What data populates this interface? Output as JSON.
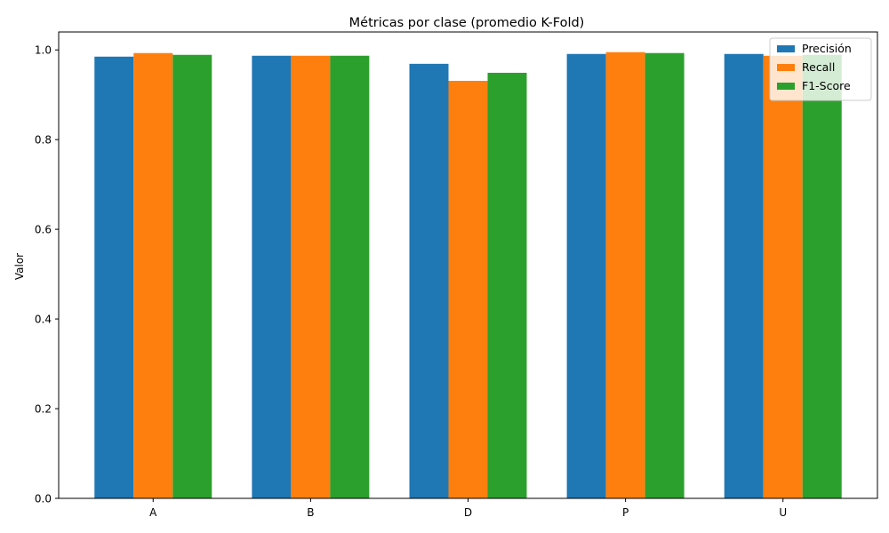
{
  "chart_data": {
    "type": "bar",
    "title": "Métricas por clase (promedio K-Fold)",
    "xlabel": "",
    "ylabel": "Valor",
    "categories": [
      "A",
      "B",
      "D",
      "P",
      "U"
    ],
    "series": [
      {
        "name": "Precisión",
        "color": "#1f77b4",
        "values": [
          0.985,
          0.987,
          0.969,
          0.991,
          0.991
        ]
      },
      {
        "name": "Recall",
        "color": "#ff7f0e",
        "values": [
          0.993,
          0.987,
          0.931,
          0.995,
          0.987
        ]
      },
      {
        "name": "F1-Score",
        "color": "#2ca02c",
        "values": [
          0.989,
          0.987,
          0.949,
          0.993,
          0.989
        ]
      }
    ],
    "ylim": [
      0,
      1.04
    ],
    "yticks": [
      "0.0",
      "0.2",
      "0.4",
      "0.6",
      "0.8",
      "1.0"
    ],
    "grid": false,
    "legend_position": "top-right"
  }
}
